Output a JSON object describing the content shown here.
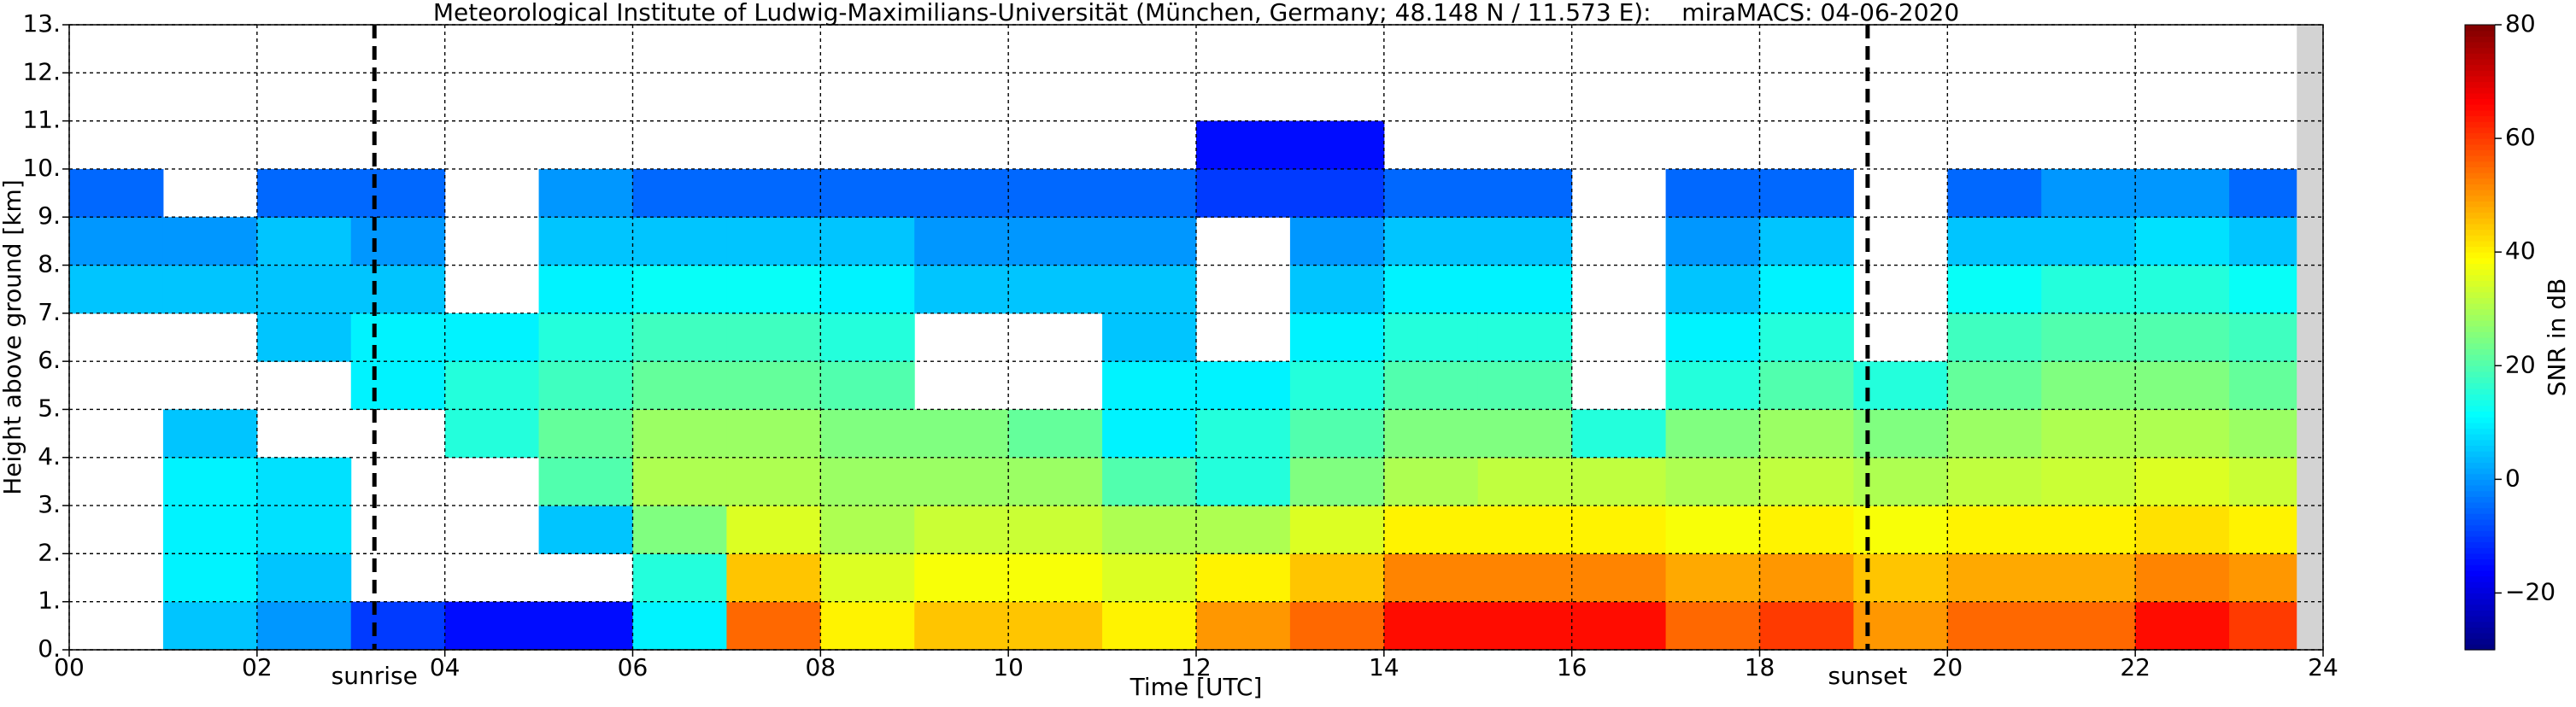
{
  "chart_data": {
    "type": "heatmap",
    "title": "Meteorological Institute of Ludwig-Maximilians-Universität (München, Germany; 48.148 N / 11.573 E):    miraMACS: 04-06-2020",
    "x_label": "Time [UTC]",
    "y_label": "Height above ground [km]",
    "colorbar_label": "SNR in dB",
    "colormap": "jet",
    "xlim": [
      0,
      24
    ],
    "ylim": [
      0,
      13
    ],
    "clim": [
      -30,
      80
    ],
    "xticks": [
      {
        "value": 0,
        "label": "00"
      },
      {
        "value": 2,
        "label": "02"
      },
      {
        "value": 4,
        "label": "04"
      },
      {
        "value": 6,
        "label": "06"
      },
      {
        "value": 8,
        "label": "08"
      },
      10,
      12,
      14,
      16,
      18,
      20,
      22,
      24
    ],
    "yticks": [
      {
        "value": 0,
        "label": "0."
      },
      {
        "value": 1,
        "label": "1."
      },
      {
        "value": 2,
        "label": "2."
      },
      {
        "value": 3,
        "label": "3."
      },
      {
        "value": 4,
        "label": "4."
      },
      {
        "value": 5,
        "label": "5."
      },
      {
        "value": 6,
        "label": "6."
      },
      {
        "value": 7,
        "label": "7."
      },
      {
        "value": 8,
        "label": "8."
      },
      {
        "value": 9,
        "label": "9."
      },
      {
        "value": 10,
        "label": "10."
      },
      {
        "value": 11,
        "label": "11."
      },
      {
        "value": 12,
        "label": "12."
      },
      {
        "value": 13,
        "label": "13."
      }
    ],
    "cticks": [
      {
        "value": -20,
        "label": "−20"
      },
      0,
      20,
      40,
      60,
      80
    ],
    "grid": true,
    "xbins": [
      0,
      1,
      2,
      3,
      4,
      5,
      6,
      7,
      8,
      9,
      10,
      11,
      12,
      13,
      14,
      15,
      16,
      17,
      18,
      19,
      20,
      21,
      22,
      23,
      24
    ],
    "ybins": [
      0,
      1,
      2,
      3,
      4,
      5,
      6,
      7,
      8,
      9,
      10,
      11,
      12,
      13
    ],
    "values": [
      [
        null,
        5,
        0,
        -10,
        -15,
        -15,
        10,
        55,
        40,
        45,
        45,
        40,
        50,
        55,
        65,
        65,
        65,
        55,
        60,
        50,
        55,
        55,
        65,
        60
      ],
      [
        null,
        10,
        5,
        null,
        null,
        null,
        15,
        45,
        35,
        38,
        38,
        35,
        40,
        45,
        52,
        52,
        52,
        48,
        50,
        45,
        48,
        48,
        52,
        50
      ],
      [
        null,
        10,
        8,
        null,
        null,
        5,
        25,
        35,
        30,
        33,
        33,
        30,
        30,
        35,
        40,
        40,
        40,
        38,
        40,
        38,
        40,
        40,
        42,
        40
      ],
      [
        null,
        10,
        8,
        null,
        null,
        20,
        30,
        30,
        28,
        28,
        28,
        20,
        15,
        25,
        30,
        32,
        32,
        30,
        32,
        30,
        32,
        33,
        35,
        33
      ],
      [
        null,
        5,
        null,
        null,
        15,
        22,
        28,
        28,
        25,
        25,
        22,
        10,
        15,
        20,
        25,
        25,
        15,
        25,
        28,
        25,
        28,
        30,
        30,
        28
      ],
      [
        null,
        null,
        null,
        10,
        15,
        18,
        22,
        22,
        20,
        null,
        null,
        10,
        10,
        15,
        20,
        20,
        null,
        15,
        20,
        15,
        22,
        25,
        25,
        22
      ],
      [
        null,
        null,
        5,
        10,
        10,
        15,
        18,
        18,
        15,
        null,
        null,
        5,
        null,
        10,
        15,
        15,
        null,
        10,
        15,
        null,
        18,
        20,
        20,
        18
      ],
      [
        5,
        5,
        5,
        5,
        null,
        10,
        12,
        12,
        10,
        5,
        5,
        5,
        null,
        5,
        10,
        10,
        null,
        5,
        10,
        null,
        12,
        15,
        15,
        12
      ],
      [
        0,
        0,
        5,
        0,
        null,
        5,
        5,
        5,
        5,
        0,
        0,
        0,
        null,
        0,
        5,
        5,
        null,
        0,
        5,
        null,
        5,
        5,
        8,
        5
      ],
      [
        -5,
        null,
        -5,
        -5,
        null,
        0,
        -5,
        -5,
        -5,
        -5,
        -5,
        -5,
        -10,
        -10,
        -5,
        -5,
        null,
        -5,
        -5,
        null,
        -5,
        0,
        0,
        -5
      ],
      [
        null,
        null,
        null,
        null,
        null,
        null,
        null,
        null,
        null,
        null,
        null,
        null,
        -15,
        -15,
        null,
        null,
        null,
        null,
        null,
        null,
        null,
        null,
        null,
        null
      ],
      [
        null,
        null,
        null,
        null,
        null,
        null,
        null,
        null,
        null,
        null,
        null,
        null,
        null,
        null,
        null,
        null,
        null,
        null,
        null,
        null,
        null,
        null,
        null,
        null
      ],
      [
        null,
        null,
        null,
        null,
        null,
        null,
        null,
        null,
        null,
        null,
        null,
        null,
        null,
        null,
        null,
        null,
        null,
        null,
        null,
        null,
        null,
        null,
        null,
        null
      ]
    ],
    "no_data_xlim": [
      23.72,
      24
    ],
    "annotations": [
      {
        "text": "sunrise",
        "x": 3.25
      },
      {
        "text": "sunset",
        "x": 19.15
      }
    ]
  }
}
